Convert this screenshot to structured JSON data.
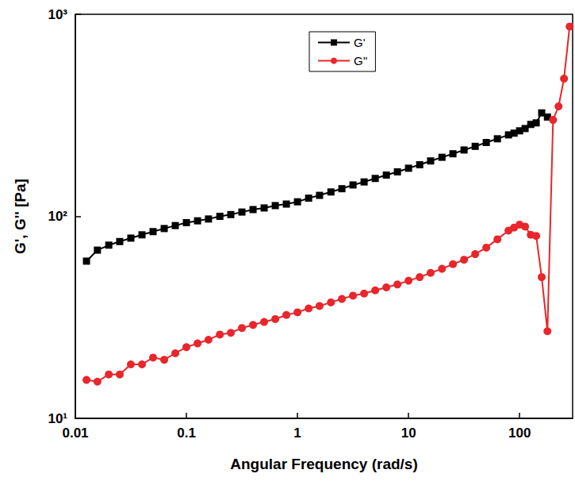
{
  "chart_data": {
    "type": "line",
    "x_label": "Angular Frequency (rad/s)",
    "y_label": "G', G'' [Pa]",
    "log": true,
    "grid": false,
    "legend": "top",
    "x": [
      0.0126,
      0.0158,
      0.02,
      0.0251,
      0.0316,
      0.0398,
      0.0501,
      0.0631,
      0.0794,
      0.1,
      0.126,
      0.158,
      0.2,
      0.251,
      0.316,
      0.398,
      0.501,
      0.631,
      0.794,
      1,
      1.26,
      1.58,
      2,
      2.51,
      3.16,
      3.98,
      5.01,
      6.31,
      7.94,
      10,
      12.6,
      15.8,
      20,
      25.1,
      31.6,
      39.8,
      50.1,
      63.1,
      79.4,
      89.1,
      100,
      112,
      126,
      141,
      158,
      178,
      200,
      224,
      251,
      282
    ],
    "series": [
      {
        "name": "G'",
        "color": "#000000",
        "marker": "square",
        "line_style": "solid",
        "values": [
          60,
          68,
          72,
          75,
          78,
          81,
          84,
          87,
          90,
          93,
          95,
          97,
          100,
          102,
          105,
          108,
          110,
          113,
          115,
          118,
          123,
          127,
          132,
          137,
          143,
          148,
          154,
          160,
          166,
          173,
          180,
          188,
          196,
          204,
          213,
          222,
          232,
          242,
          253,
          258,
          265,
          272,
          285,
          290,
          325,
          310,
          null,
          null,
          null,
          null
        ]
      },
      {
        "name": "G''",
        "color": "#e8262b",
        "marker": "circle",
        "line_style": "solid",
        "values": [
          15.5,
          15.2,
          16.5,
          16.5,
          18.5,
          18.5,
          20,
          19.5,
          21,
          22.5,
          23.5,
          24.5,
          26,
          26.5,
          28,
          29,
          30,
          31,
          32.5,
          33.5,
          35,
          36,
          37.5,
          39,
          40.5,
          41.5,
          43,
          44.5,
          46,
          48,
          50,
          52.5,
          55,
          58,
          61,
          65,
          70,
          77,
          85,
          88,
          91,
          89,
          81,
          80,
          50,
          27,
          300,
          350,
          480,
          870
        ]
      }
    ],
    "xlim": [
      0.01,
      300
    ],
    "xticks": [
      0.01,
      0.1,
      1,
      10,
      100
    ],
    "ylim": [
      10,
      1000
    ],
    "yticks": [
      {
        "value": 10,
        "label": "10¹"
      },
      {
        "value": 100,
        "label": "10²"
      },
      {
        "value": 1000,
        "label": "10³"
      }
    ]
  }
}
